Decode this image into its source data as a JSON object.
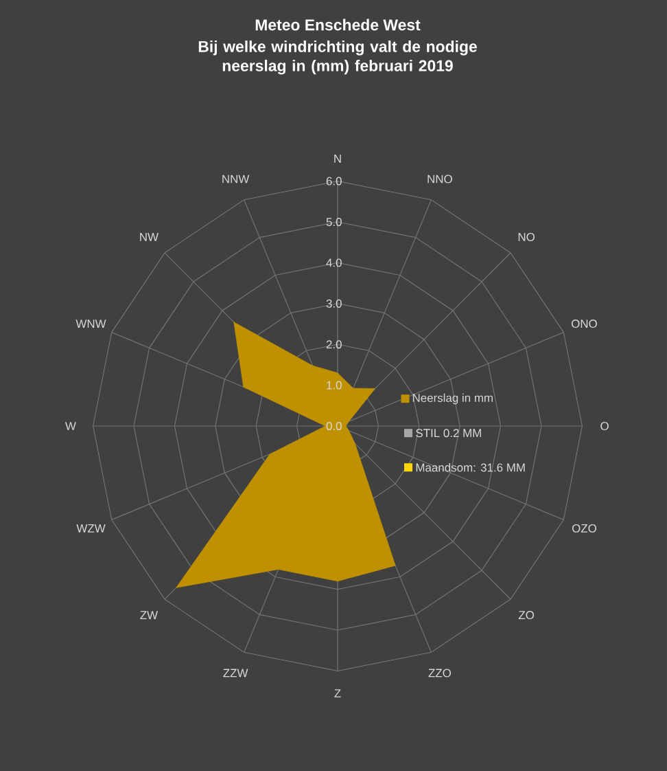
{
  "chart_data": {
    "type": "radar",
    "title": "Meteo Enschede West",
    "subtitle": "Bij welke windrichting valt de nodige neerslag in (mm) februari 2019",
    "categories": [
      "N",
      "NNO",
      "NO",
      "ONO",
      "O",
      "OZO",
      "ZO",
      "ZZO",
      "Z",
      "ZZW",
      "ZW",
      "WZW",
      "W",
      "WNW",
      "NW",
      "NNW"
    ],
    "series": [
      {
        "name": "Neerslag in mm",
        "color": "#bf9000",
        "values": [
          1.3,
          1.0,
          1.3,
          0.3,
          0.2,
          0.3,
          0.6,
          3.7,
          3.8,
          3.8,
          5.6,
          1.8,
          0.3,
          2.5,
          3.6,
          1.6
        ]
      }
    ],
    "annotations": [
      "STIL 0.2 MM",
      "Maandsom: 31.6 MM"
    ],
    "ylim": [
      0,
      6
    ],
    "yticks": [
      {
        "value": 0,
        "label": "0.0"
      },
      {
        "value": 1,
        "label": "1.0"
      },
      {
        "value": 2,
        "label": "2.0"
      },
      {
        "value": 3,
        "label": "3.0"
      },
      {
        "value": 4,
        "label": "4.0"
      },
      {
        "value": 5,
        "label": "5.0"
      },
      {
        "value": 6,
        "label": "6.0"
      }
    ],
    "grid": true,
    "legend": "right"
  }
}
